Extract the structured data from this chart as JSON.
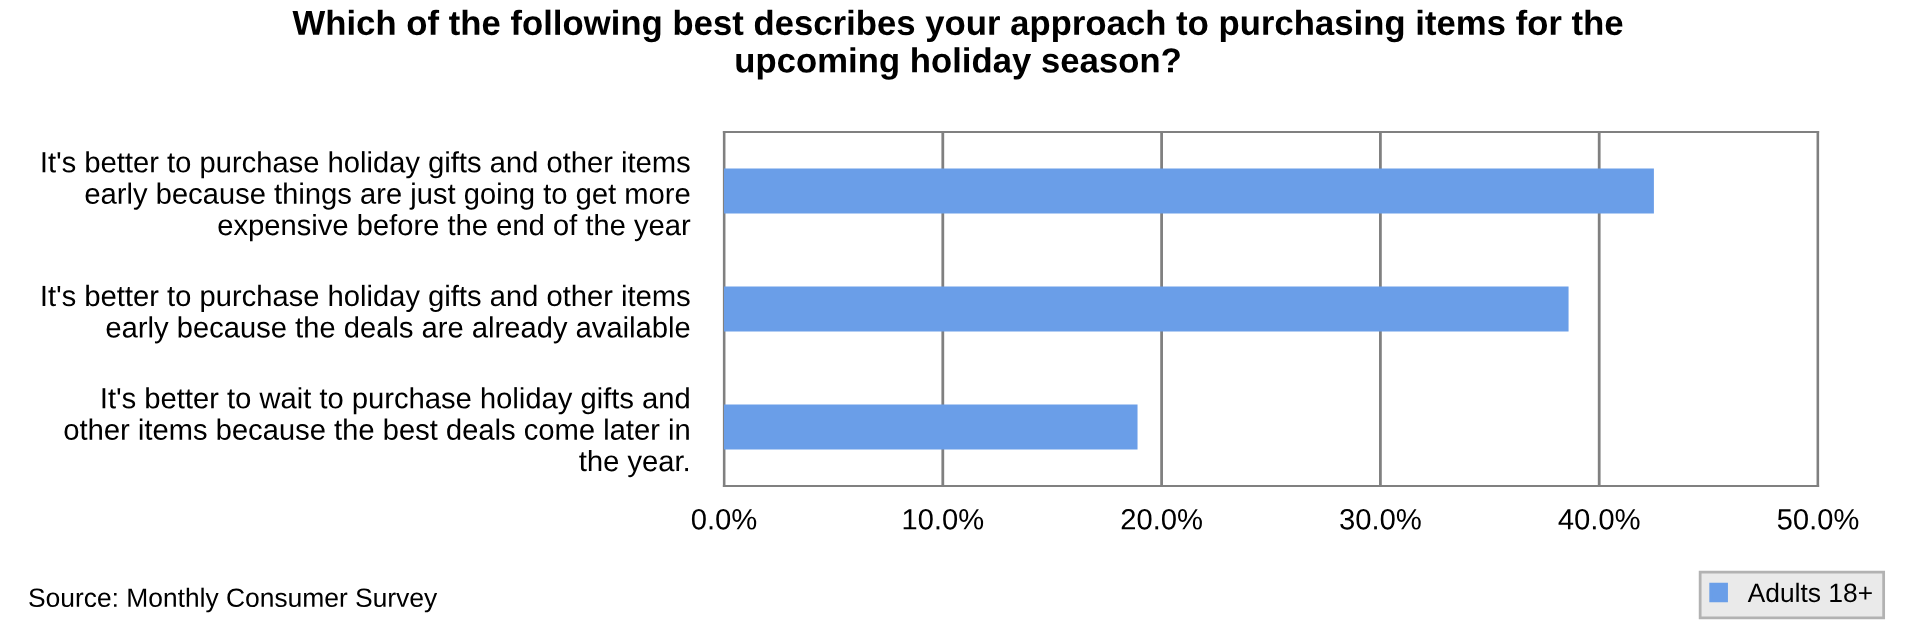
{
  "chart_data": {
    "type": "bar",
    "orientation": "horizontal",
    "title": "Which of the following best describes your approach to purchasing items for the\nupcoming holiday season?",
    "categories": [
      "It's better to purchase holiday gifts and other items\nearly because things are just going to get more\nexpensive before the end of the year",
      "It's better to purchase holiday gifts and other items\nearly because the deals are already available",
      "It's better to wait to purchase holiday gifts and\nother items because the best deals come later in\nthe year."
    ],
    "series": [
      {
        "name": "Adults 18+",
        "color": "#6a9ee8",
        "values": [
          42.5,
          38.6,
          18.9
        ]
      }
    ],
    "xlim": [
      0,
      50
    ],
    "xticks": [
      {
        "value": 0,
        "label": "0.0%"
      },
      {
        "value": 10,
        "label": "10.0%"
      },
      {
        "value": 20,
        "label": "20.0%"
      },
      {
        "value": 30,
        "label": "30.0%"
      },
      {
        "value": 40,
        "label": "40.0%"
      },
      {
        "value": 50,
        "label": "50.0%"
      }
    ],
    "grid": "x",
    "legend": "bottom right",
    "annotations": [
      "Source: Monthly Consumer Survey"
    ]
  }
}
